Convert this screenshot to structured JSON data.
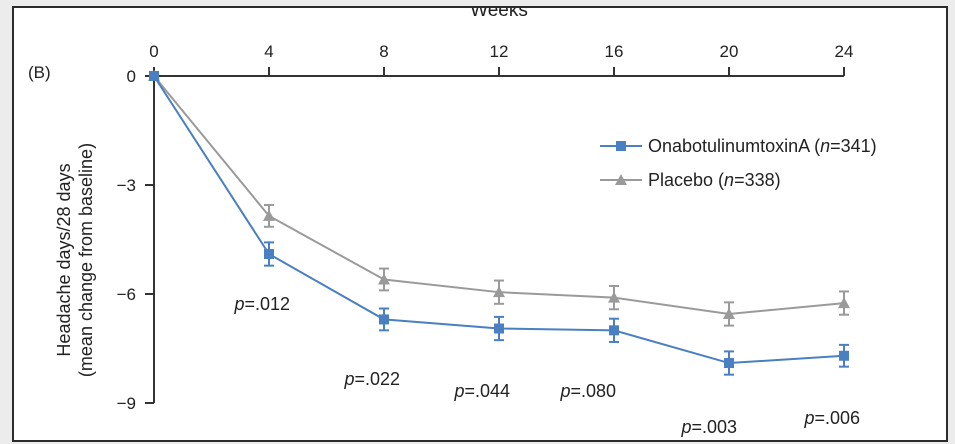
{
  "chart_data": {
    "type": "line",
    "panel_label": "(B)",
    "xlabel": "Weeks",
    "ylabel_line1": "Headache days/28 days",
    "ylabel_line2": "(mean change from baseline)",
    "x": [
      0,
      4,
      8,
      12,
      16,
      20,
      24
    ],
    "x_ticks": [
      "0",
      "4",
      "8",
      "12",
      "16",
      "20",
      "24"
    ],
    "y_ticks": [
      "0",
      "−3",
      "−6",
      "−9"
    ],
    "y_tick_values": [
      0,
      -3,
      -6,
      -9
    ],
    "xlim": [
      0,
      24
    ],
    "ylim": [
      -9,
      0
    ],
    "x_axis_position": "top",
    "grid": false,
    "legend_position": "top-right",
    "series": [
      {
        "key": "ona",
        "legend_name": "OnabotulinumtoxinA",
        "legend_n": "341",
        "color": "#4a7fc1",
        "marker": "square",
        "values": [
          0,
          -4.9,
          -6.7,
          -6.95,
          -7.0,
          -7.9,
          -7.7
        ],
        "errors": [
          0,
          0.32,
          0.3,
          0.32,
          0.32,
          0.32,
          0.3
        ]
      },
      {
        "key": "placebo",
        "legend_name": "Placebo",
        "legend_n": "338",
        "color": "#9a9a9a",
        "marker": "triangle",
        "values": [
          0,
          -3.85,
          -5.6,
          -5.95,
          -6.1,
          -6.55,
          -6.25
        ],
        "errors": [
          0,
          0.3,
          0.3,
          0.32,
          0.32,
          0.32,
          0.32
        ]
      }
    ],
    "p_values": [
      {
        "week": 4,
        "text": "p=.012"
      },
      {
        "week": 8,
        "text": "p=.022"
      },
      {
        "week": 12,
        "text": "p=.044"
      },
      {
        "week": 16,
        "text": "p=.080"
      },
      {
        "week": 20,
        "text": "p=.003"
      },
      {
        "week": 24,
        "text": "p=.006"
      }
    ]
  }
}
